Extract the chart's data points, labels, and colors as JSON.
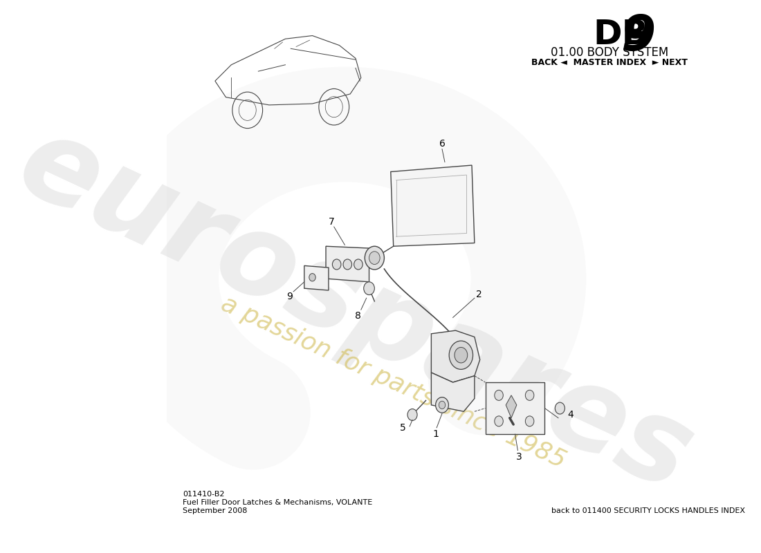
{
  "bg_color": "#ffffff",
  "title_body": "01.00 BODY SYSTEM",
  "nav_text": "BACK ◄  MASTER INDEX  ► NEXT",
  "part_number": "011410-B2",
  "part_desc": "Fuel Filler Door Latches & Mechanisms, VOLANTE",
  "part_date": "September 2008",
  "back_ref": "back to 011400 SECURITY LOCKS HANDLES INDEX",
  "watermark_main": "eurospares",
  "watermark_sub": "a passion for parts since 1985",
  "line_color": "#444444",
  "fill_light": "#f0f0f0",
  "fill_med": "#e0e0e0",
  "fill_dark": "#cccccc"
}
